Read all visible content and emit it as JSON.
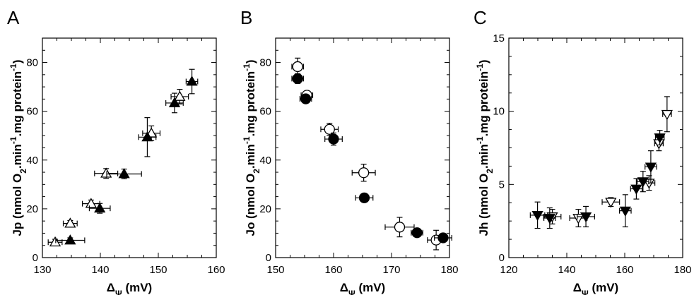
{
  "chart_data": [
    {
      "type": "scatter",
      "panel": "A",
      "xlabel_main": "Δ",
      "xlabel_sub": "Ψ",
      "xlabel_unit": " (mV)",
      "ylabel_parts": [
        "Jp (nmol O",
        "2",
        ".min",
        "-1",
        ".mg protein",
        "-1",
        ")"
      ],
      "xlim": [
        130,
        160
      ],
      "ylim": [
        0,
        90
      ],
      "xticks": [
        130,
        140,
        150,
        160
      ],
      "yticks": [
        0,
        20,
        40,
        60,
        80
      ],
      "series": [
        {
          "marker": "triangle-up",
          "filled": false,
          "points": [
            {
              "x": 132.2,
              "y": 6.3,
              "xerr": 1.2,
              "yerr": 1.2
            },
            {
              "x": 134.8,
              "y": 14.0,
              "xerr": 1.2,
              "yerr": 1.2
            },
            {
              "x": 138.4,
              "y": 22.1,
              "xerr": 1.5,
              "yerr": 1.5
            },
            {
              "x": 141.0,
              "y": 34.5,
              "xerr": 2.0,
              "yerr": 2.0
            },
            {
              "x": 148.8,
              "y": 51.0,
              "xerr": 1.5,
              "yerr": 3.0
            },
            {
              "x": 153.7,
              "y": 66.0,
              "xerr": 1.5,
              "yerr": 3.0
            }
          ]
        },
        {
          "marker": "triangle-up",
          "filled": true,
          "points": [
            {
              "x": 134.8,
              "y": 7.1,
              "xerr": 2.5,
              "yerr": 1.0
            },
            {
              "x": 139.9,
              "y": 20.2,
              "xerr": 1.8,
              "yerr": 2.0
            },
            {
              "x": 144.1,
              "y": 34.3,
              "xerr": 3.0,
              "yerr": 2.0
            },
            {
              "x": 148.1,
              "y": 49.4,
              "xerr": 1.5,
              "yerr": 8.0
            },
            {
              "x": 152.8,
              "y": 63.4,
              "xerr": 1.5,
              "yerr": 4.0
            },
            {
              "x": 155.8,
              "y": 72.2,
              "xerr": 1.0,
              "yerr": 5.0
            }
          ]
        }
      ]
    },
    {
      "type": "scatter",
      "panel": "B",
      "xlabel_main": "Δ",
      "xlabel_sub": "Ψ",
      "xlabel_unit": " (mV)",
      "ylabel_parts": [
        "Jo (nmol O",
        "2",
        ".min",
        "-1",
        ".mg protein",
        "-1",
        ")"
      ],
      "xlim": [
        150,
        180
      ],
      "ylim": [
        0,
        90
      ],
      "xticks": [
        150,
        160,
        170,
        180
      ],
      "yticks": [
        0,
        20,
        40,
        60,
        80
      ],
      "series": [
        {
          "marker": "circle",
          "filled": false,
          "points": [
            {
              "x": 153.8,
              "y": 78.3,
              "xerr": 1.0,
              "yerr": 3.5
            },
            {
              "x": 155.4,
              "y": 66.6,
              "xerr": 1.0,
              "yerr": 1.5
            },
            {
              "x": 159.3,
              "y": 52.6,
              "xerr": 1.5,
              "yerr": 2.5
            },
            {
              "x": 165.2,
              "y": 34.8,
              "xerr": 2.0,
              "yerr": 3.5
            },
            {
              "x": 171.4,
              "y": 12.5,
              "xerr": 2.5,
              "yerr": 4.0
            },
            {
              "x": 177.7,
              "y": 7.2,
              "xerr": 1.5,
              "yerr": 4.0
            }
          ]
        },
        {
          "marker": "circle",
          "filled": true,
          "points": [
            {
              "x": 153.8,
              "y": 73.4,
              "xerr": 1.0,
              "yerr": 2.0
            },
            {
              "x": 155.2,
              "y": 65.1,
              "xerr": 1.0,
              "yerr": 1.5
            },
            {
              "x": 160.0,
              "y": 48.6,
              "xerr": 1.5,
              "yerr": 2.5
            },
            {
              "x": 165.3,
              "y": 24.5,
              "xerr": 1.5,
              "yerr": 1.5
            },
            {
              "x": 174.4,
              "y": 10.2,
              "xerr": 1.0,
              "yerr": 1.5
            },
            {
              "x": 178.9,
              "y": 8.1,
              "xerr": 1.5,
              "yerr": 1.5
            }
          ]
        }
      ]
    },
    {
      "type": "scatter",
      "panel": "C",
      "xlabel_main": "Δ",
      "xlabel_sub": "Ψ",
      "xlabel_unit": " (mV)",
      "ylabel_parts": [
        "Jh (nmol O",
        "2",
        ".min",
        "-1",
        ".mg protein",
        "-1",
        ")"
      ],
      "xlim": [
        120,
        180
      ],
      "ylim": [
        0,
        15
      ],
      "xticks": [
        120,
        140,
        160,
        180
      ],
      "yticks": [
        0,
        5,
        10,
        15
      ],
      "series": [
        {
          "marker": "triangle-down",
          "filled": false,
          "points": [
            {
              "x": 135.0,
              "y": 2.8,
              "xerr": 3.0,
              "yerr": 0.5
            },
            {
              "x": 144.0,
              "y": 2.7,
              "xerr": 3.0,
              "yerr": 0.6
            },
            {
              "x": 155.2,
              "y": 3.8,
              "xerr": 3.0,
              "yerr": 0.3
            },
            {
              "x": 168.4,
              "y": 5.1,
              "xerr": 2.0,
              "yerr": 0.5
            },
            {
              "x": 171.8,
              "y": 7.8,
              "xerr": 1.5,
              "yerr": 0.5
            },
            {
              "x": 174.6,
              "y": 9.8,
              "xerr": 1.5,
              "yerr": 1.2
            }
          ]
        },
        {
          "marker": "triangle-down",
          "filled": true,
          "points": [
            {
              "x": 129.9,
              "y": 2.9,
              "xerr": 2.5,
              "yerr": 0.9
            },
            {
              "x": 134.1,
              "y": 2.7,
              "xerr": 2.0,
              "yerr": 0.7
            },
            {
              "x": 146.6,
              "y": 2.8,
              "xerr": 3.0,
              "yerr": 0.7
            },
            {
              "x": 160.2,
              "y": 3.2,
              "xerr": 2.0,
              "yerr": 1.1
            },
            {
              "x": 164.0,
              "y": 4.7,
              "xerr": 2.0,
              "yerr": 0.7
            },
            {
              "x": 166.3,
              "y": 5.2,
              "xerr": 2.0,
              "yerr": 0.7
            },
            {
              "x": 169.0,
              "y": 6.2,
              "xerr": 2.0,
              "yerr": 1.1
            },
            {
              "x": 172.1,
              "y": 8.2,
              "xerr": 1.5,
              "yerr": 0.5
            }
          ]
        }
      ]
    }
  ]
}
